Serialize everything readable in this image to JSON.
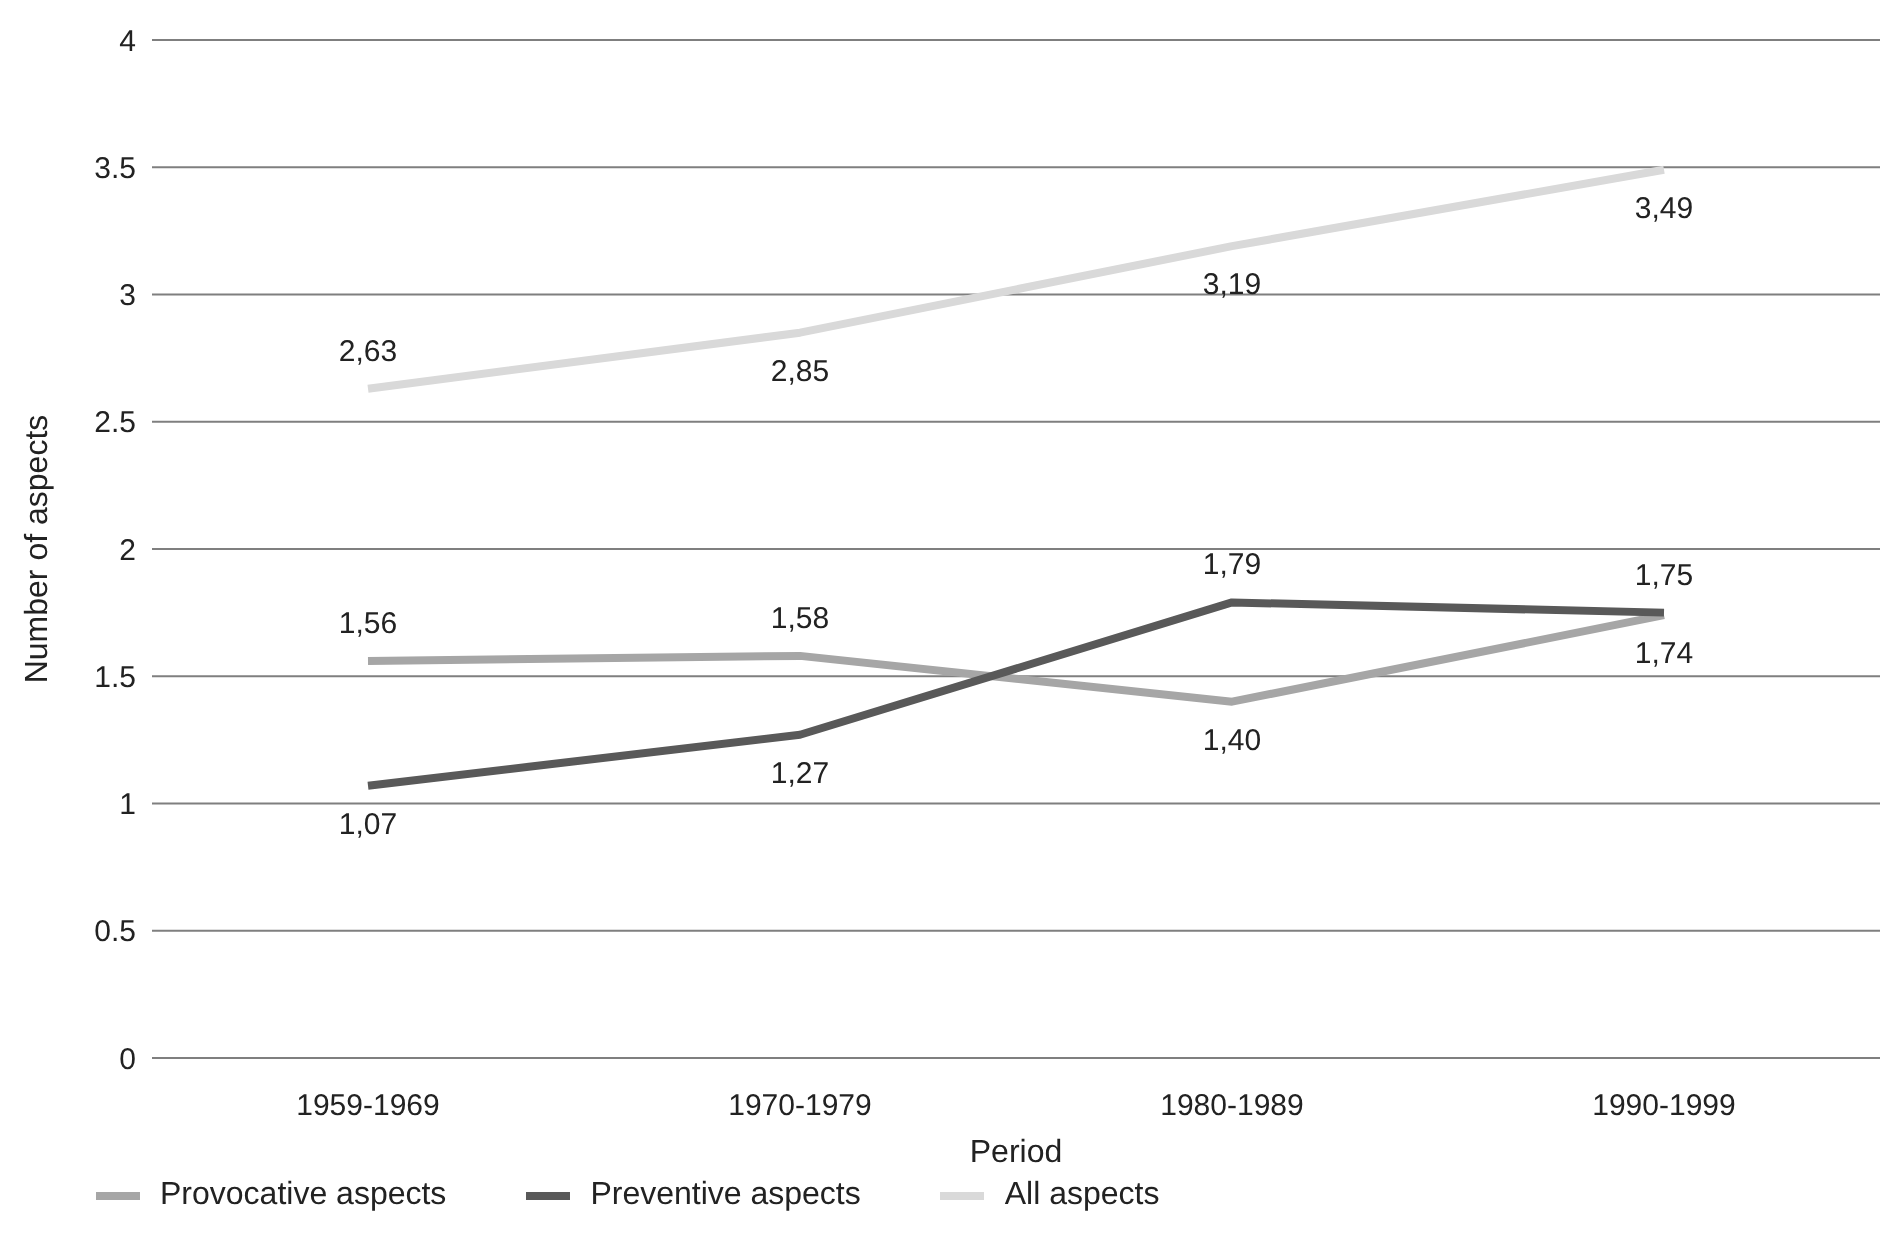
{
  "chart_data": {
    "type": "line",
    "xlabel": "Period",
    "ylabel": "Number of aspects",
    "categories": [
      "1959-1969",
      "1970-1979",
      "1980-1989",
      "1990-1999"
    ],
    "series": [
      {
        "name": "Provocative aspects",
        "color": "#a6a6a6",
        "values": [
          1.56,
          1.58,
          1.4,
          1.74
        ],
        "value_labels": [
          "1,56",
          "1,58",
          "1,40",
          "1,74"
        ]
      },
      {
        "name": "Preventive aspects",
        "color": "#595959",
        "values": [
          1.07,
          1.27,
          1.79,
          1.75
        ],
        "value_labels": [
          "1,07",
          "1,27",
          "1,79",
          "1,75"
        ]
      },
      {
        "name": "All aspects",
        "color": "#d9d9d9",
        "values": [
          2.63,
          2.85,
          3.19,
          3.49
        ],
        "value_labels": [
          "2,63",
          "2,85",
          "3,19",
          "3,49"
        ]
      }
    ],
    "ylim": [
      0,
      4
    ],
    "yticks": [
      0,
      0.5,
      1,
      1.5,
      2,
      2.5,
      3,
      3.5,
      4
    ],
    "grid": "y",
    "legend": "bottom",
    "marker": "none",
    "line_style": "solid"
  }
}
